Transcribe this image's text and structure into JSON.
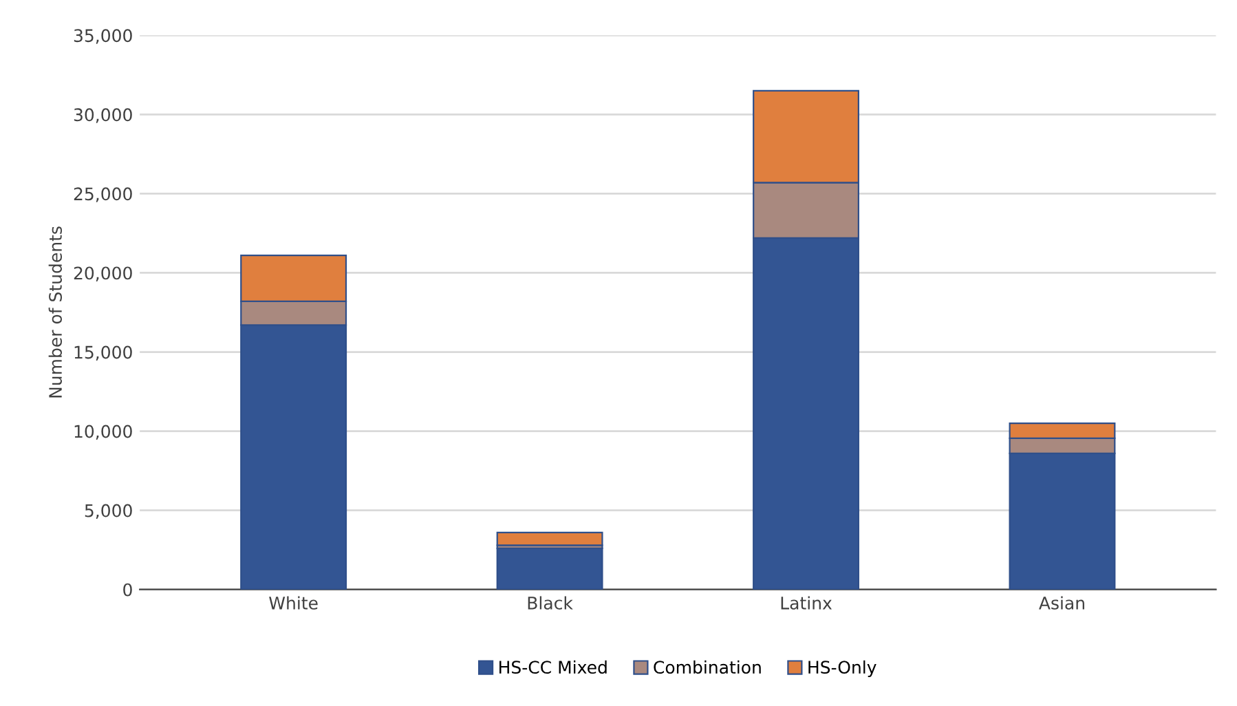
{
  "chart_data": {
    "type": "bar",
    "stacked": true,
    "ylabel": "Number of Students",
    "categories": [
      "White",
      "Black",
      "Latinx",
      "Asian"
    ],
    "series": [
      {
        "name": "HS-CC Mixed",
        "color": "#335593",
        "values": [
          16700,
          2600,
          22200,
          8600
        ]
      },
      {
        "name": "Combination",
        "color": "#a9897f",
        "values": [
          1500,
          200,
          3500,
          950
        ]
      },
      {
        "name": "HS-Only",
        "color": "#e07f3e",
        "values": [
          2900,
          800,
          5800,
          950
        ]
      }
    ],
    "ylim": [
      0,
      35000
    ],
    "yticks": [
      {
        "value": 0,
        "label": "0"
      },
      {
        "value": 5000,
        "label": "5,000"
      },
      {
        "value": 10000,
        "label": "10,000"
      },
      {
        "value": 15000,
        "label": "15,000"
      },
      {
        "value": 20000,
        "label": "20,000"
      },
      {
        "value": 25000,
        "label": "25,000"
      },
      {
        "value": 30000,
        "label": "30,000"
      },
      {
        "value": 35000,
        "label": "35,000"
      }
    ],
    "grid": "y",
    "legend": "bottom"
  }
}
